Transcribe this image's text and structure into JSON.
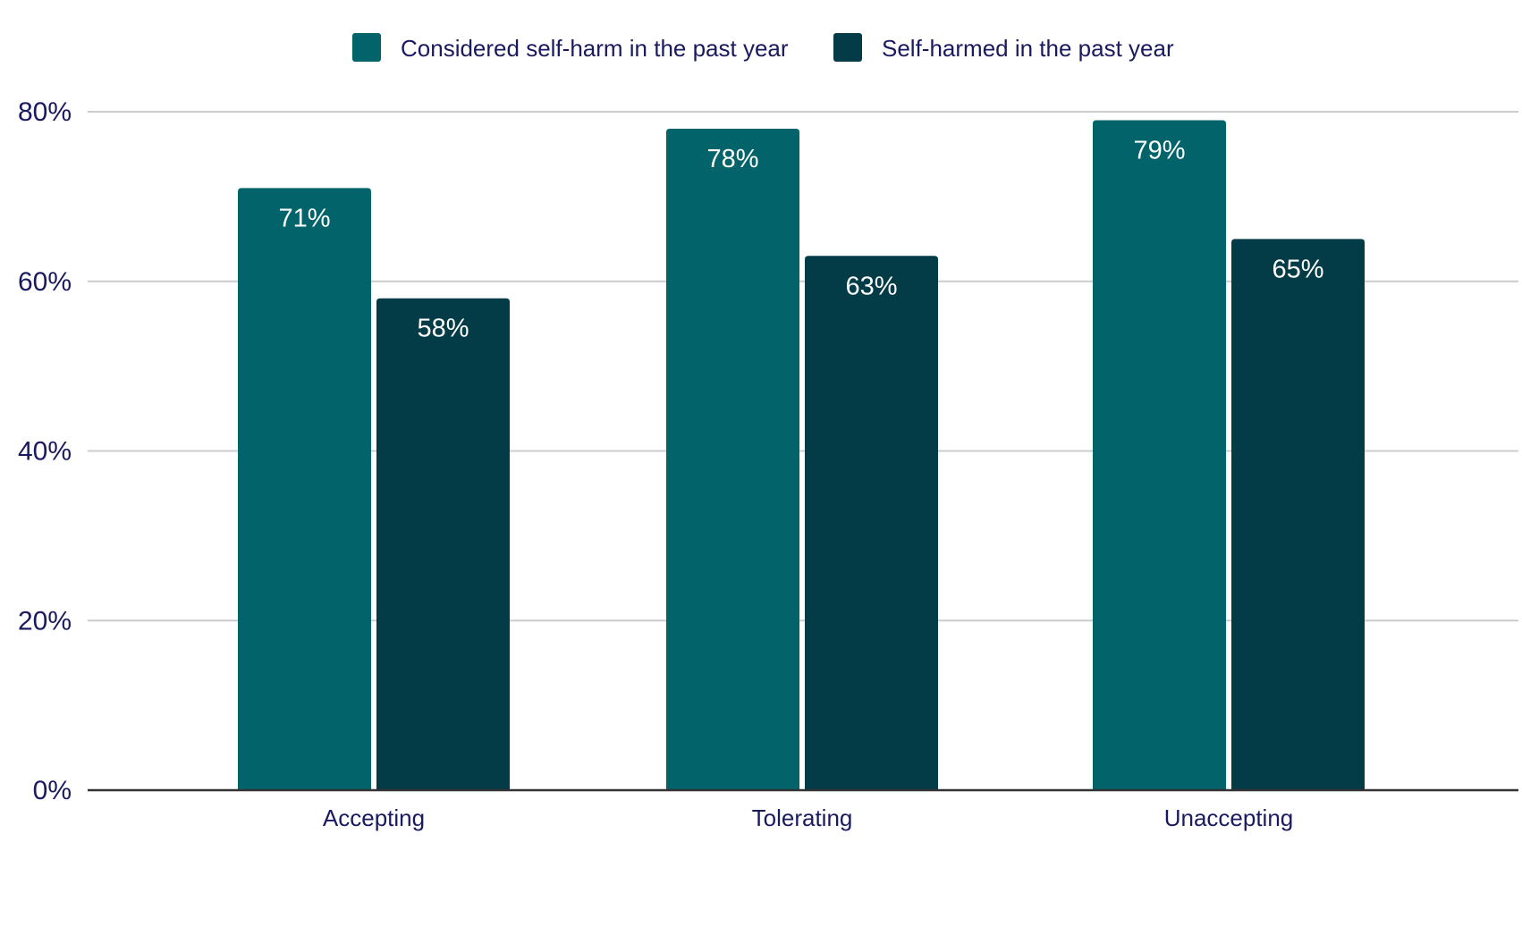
{
  "chart_data": {
    "type": "bar",
    "categories": [
      "Accepting",
      "Tolerating",
      "Unaccepting"
    ],
    "series": [
      {
        "name": "Considered self-harm in the past year",
        "values": [
          71,
          78,
          79
        ],
        "labels": [
          "71%",
          "78%",
          "79%"
        ],
        "color": "#02636a"
      },
      {
        "name": "Self-harmed in the past year",
        "values": [
          58,
          63,
          65
        ],
        "labels": [
          "58%",
          "63%",
          "65%"
        ],
        "color": "#033b47"
      }
    ],
    "ylim": [
      0,
      80
    ],
    "yticks": [
      0,
      20,
      40,
      60,
      80
    ],
    "ytick_labels": [
      "0%",
      "20%",
      "40%",
      "60%",
      "80%"
    ],
    "grid": true,
    "legend_position": "top-center",
    "colors": {
      "text": "#1a1a5e",
      "grid": "#cccccc",
      "axis": "#333333",
      "data_label": "#ffffff"
    }
  }
}
